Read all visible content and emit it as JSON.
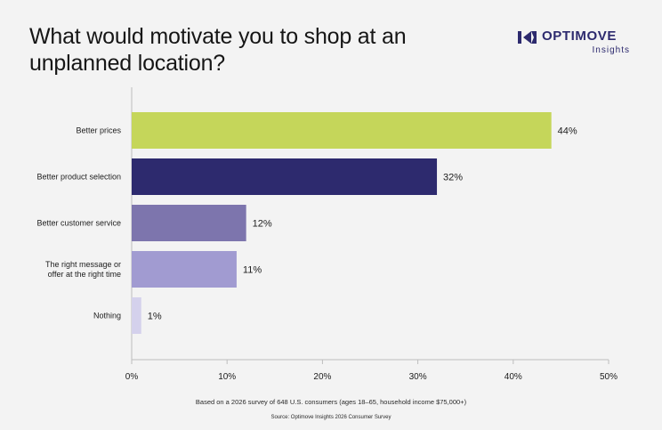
{
  "title": "What would motivate you to shop at an unplanned location?",
  "logo": {
    "word": "OPTIMOVE",
    "sub": "Insights",
    "color": "#2d2a6e"
  },
  "chart_data": {
    "type": "bar",
    "orientation": "horizontal",
    "title": "What would motivate you to shop at an unplanned location?",
    "categories": [
      [
        "Better prices"
      ],
      [
        "Better product selection"
      ],
      [
        "Better customer service"
      ],
      [
        "The right message or",
        "offer at the right time"
      ],
      [
        "Nothing"
      ]
    ],
    "values": [
      44,
      32,
      12,
      11,
      1
    ],
    "value_labels": [
      "44%",
      "32%",
      "12%",
      "11%",
      "1%"
    ],
    "colors": [
      "#c5d65a",
      "#2d2a6e",
      "#7d75ad",
      "#a19bd1",
      "#d4d1ec"
    ],
    "xlim": [
      0,
      50
    ],
    "xticks": [
      0,
      10,
      20,
      30,
      40,
      50
    ],
    "xtick_labels": [
      "0%",
      "10%",
      "20%",
      "30%",
      "40%",
      "50%"
    ],
    "grid": false
  },
  "footnote": "Based on a 2026 survey of 648 U.S. consumers (ages 18–65, household income $75,000+)",
  "source": "Source: Optimove Insights 2026 Consumer Survey"
}
